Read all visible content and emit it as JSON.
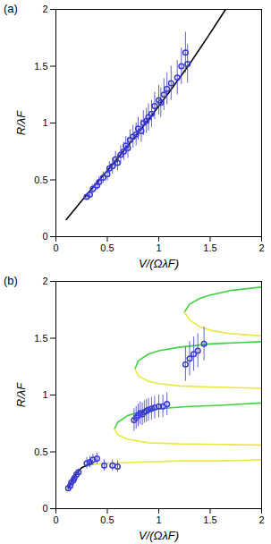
{
  "chart_data": [
    {
      "type": "scatter",
      "title": "(a)",
      "x_label": "V/(ΩλF)",
      "y_label": "R/λF",
      "xlim": [
        0,
        2
      ],
      "ylim": [
        0,
        2
      ],
      "xticks": [
        0,
        0.5,
        1,
        1.5,
        2
      ],
      "yticks": [
        0,
        0.5,
        1,
        1.5,
        2
      ],
      "series": [
        {
          "type": "line",
          "color": "#000000",
          "line_style": "solid",
          "x": [
            0.1,
            0.3,
            0.5,
            0.7,
            0.9,
            1.1,
            1.3,
            1.5,
            1.65
          ],
          "values": [
            0.15,
            0.37,
            0.58,
            0.8,
            1.03,
            1.27,
            1.52,
            1.79,
            2.0
          ]
        },
        {
          "type": "scatter",
          "color": "#3a3acf",
          "marker": "circle",
          "x": [
            0.3,
            0.33,
            0.36,
            0.4,
            0.42,
            0.46,
            0.5,
            0.52,
            0.55,
            0.58,
            0.6,
            0.63,
            0.66,
            0.68,
            0.7,
            0.72,
            0.75,
            0.78,
            0.8,
            0.83,
            0.85,
            0.88,
            0.9,
            0.93,
            0.96,
            1.0,
            1.02,
            1.05,
            1.08,
            1.12,
            1.18,
            1.22,
            1.26,
            1.28
          ],
          "values": [
            0.35,
            0.37,
            0.42,
            0.45,
            0.48,
            0.52,
            0.55,
            0.6,
            0.62,
            0.68,
            0.65,
            0.72,
            0.75,
            0.8,
            0.78,
            0.85,
            0.88,
            0.9,
            0.95,
            0.93,
            1.0,
            1.02,
            1.05,
            1.08,
            1.15,
            1.2,
            1.18,
            1.25,
            1.3,
            1.35,
            1.4,
            1.5,
            1.62,
            1.52
          ],
          "errors": [
            0.03,
            0.03,
            0.04,
            0.04,
            0.05,
            0.05,
            0.06,
            0.06,
            0.07,
            0.07,
            0.07,
            0.08,
            0.08,
            0.08,
            0.09,
            0.09,
            0.1,
            0.1,
            0.1,
            0.1,
            0.11,
            0.11,
            0.12,
            0.12,
            0.12,
            0.13,
            0.13,
            0.14,
            0.14,
            0.15,
            0.15,
            0.16,
            0.18,
            0.17
          ]
        }
      ]
    },
    {
      "type": "scatter",
      "title": "(b)",
      "x_label": "V/(ΩλF)",
      "y_label": "R/λF",
      "xlim": [
        0,
        2
      ],
      "ylim": [
        0,
        2
      ],
      "xticks": [
        0,
        0.5,
        1,
        1.5,
        2
      ],
      "yticks": [
        0,
        0.5,
        1,
        1.5,
        2
      ],
      "series": [
        {
          "type": "line",
          "color": "#e8e84a",
          "line_style": "solid",
          "x": [
            0.35,
            0.5,
            0.8,
            1.2,
            1.6,
            2.0
          ],
          "values": [
            0.39,
            0.4,
            0.41,
            0.42,
            0.42,
            0.43
          ]
        },
        {
          "type": "line",
          "color": "#44d044",
          "line_style": "solid",
          "x": [
            0.57,
            0.6,
            0.7,
            0.85,
            1.0,
            1.3,
            1.6,
            2.0
          ],
          "values": [
            0.7,
            0.76,
            0.82,
            0.86,
            0.88,
            0.9,
            0.91,
            0.93
          ]
        },
        {
          "type": "line",
          "color": "#e8e84a",
          "line_style": "solid",
          "x": [
            0.57,
            0.6,
            0.7,
            0.9,
            1.2,
            1.6,
            2.0
          ],
          "values": [
            0.7,
            0.65,
            0.61,
            0.58,
            0.57,
            0.565,
            0.56
          ]
        },
        {
          "type": "line",
          "color": "#44d044",
          "line_style": "solid",
          "x": [
            0.77,
            0.8,
            0.9,
            1.0,
            1.2,
            1.5,
            2.0
          ],
          "values": [
            1.23,
            1.3,
            1.36,
            1.39,
            1.42,
            1.45,
            1.47
          ]
        },
        {
          "type": "line",
          "color": "#e8e84a",
          "line_style": "solid",
          "x": [
            0.77,
            0.8,
            0.9,
            1.0,
            1.2,
            1.5,
            2.0
          ],
          "values": [
            1.23,
            1.17,
            1.12,
            1.1,
            1.08,
            1.07,
            1.06
          ]
        },
        {
          "type": "line",
          "color": "#44d044",
          "line_style": "solid",
          "x": [
            1.25,
            1.3,
            1.4,
            1.5,
            1.7,
            2.0
          ],
          "values": [
            1.73,
            1.8,
            1.85,
            1.88,
            1.92,
            1.95
          ]
        },
        {
          "type": "line",
          "color": "#e8e84a",
          "line_style": "solid",
          "x": [
            1.25,
            1.3,
            1.4,
            1.5,
            1.7,
            2.0
          ],
          "values": [
            1.73,
            1.66,
            1.6,
            1.57,
            1.54,
            1.52
          ]
        },
        {
          "type": "line",
          "color": "#000000",
          "line_style": "solid",
          "x": [
            0.12,
            0.15,
            0.2,
            0.25,
            0.3,
            0.35
          ],
          "values": [
            0.18,
            0.24,
            0.31,
            0.36,
            0.38,
            0.4
          ]
        },
        {
          "type": "scatter",
          "color": "#3a3acf",
          "marker": "circle",
          "x": [
            0.12,
            0.14,
            0.15,
            0.17,
            0.18,
            0.2,
            0.22,
            0.3,
            0.33,
            0.36,
            0.4,
            0.47,
            0.55,
            0.6,
            0.76,
            0.78,
            0.8,
            0.82,
            0.84,
            0.86,
            0.88,
            0.9,
            0.93,
            0.96,
            1.0,
            1.04,
            1.08,
            1.26,
            1.3,
            1.34,
            1.38,
            1.44
          ],
          "values": [
            0.18,
            0.2,
            0.23,
            0.25,
            0.27,
            0.3,
            0.32,
            0.4,
            0.41,
            0.43,
            0.44,
            0.38,
            0.38,
            0.37,
            0.78,
            0.8,
            0.82,
            0.84,
            0.83,
            0.85,
            0.86,
            0.87,
            0.88,
            0.89,
            0.9,
            0.9,
            0.92,
            1.27,
            1.32,
            1.36,
            1.39,
            1.45
          ],
          "errors": [
            0.02,
            0.02,
            0.02,
            0.03,
            0.03,
            0.03,
            0.03,
            0.05,
            0.05,
            0.05,
            0.05,
            0.05,
            0.05,
            0.05,
            0.1,
            0.1,
            0.1,
            0.1,
            0.1,
            0.1,
            0.1,
            0.1,
            0.1,
            0.1,
            0.1,
            0.1,
            0.1,
            0.15,
            0.15,
            0.15,
            0.15,
            0.15
          ]
        }
      ]
    }
  ]
}
